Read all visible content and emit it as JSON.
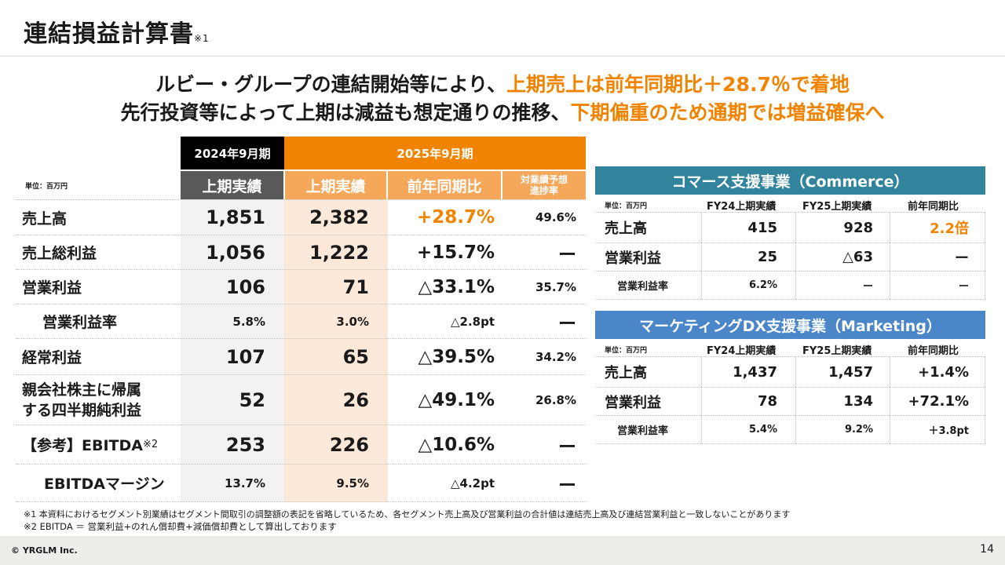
{
  "title": {
    "main": "連結損益計算書",
    "note": "※1"
  },
  "headline": {
    "line1_black": "ルビー・グループの連結開始等により、",
    "line1_orange": "上期売上は前年同期比＋28.7％で着地",
    "line2_black": "先行投資等によって上期は減益も想定通りの推移、",
    "line2_orange": "下期偏重のため通期では増益確保へ"
  },
  "colors": {
    "orange": "#f08300",
    "black": "#000000",
    "gray_header": "#595959",
    "teal": "#31849b",
    "blue": "#4a86c8",
    "orange_col": "#fde9d9",
    "gray_col": "#f2f2f2"
  },
  "main_table": {
    "unit": "単位：百万円",
    "fy2024": "2024年9月期",
    "fy2025": "2025年9月期",
    "columns": [
      "上期実績",
      "上期実績",
      "前年同期比",
      "対業績予想",
      "進捗率"
    ],
    "rows": [
      {
        "label": "売上高",
        "prev": "1,851",
        "curr": "2,382",
        "yoy": "+28.7%",
        "progress": "49.6%"
      },
      {
        "label": "売上総利益",
        "prev": "1,056",
        "curr": "1,222",
        "yoy": "+15.7%",
        "progress": "ー"
      },
      {
        "label": "営業利益",
        "prev": "106",
        "curr": "71",
        "yoy": "△33.1%",
        "progress": "35.7%"
      },
      {
        "label": "営業利益率",
        "prev": "5.8%",
        "curr": "3.0%",
        "yoy": "△2.8pt",
        "progress": "ー"
      },
      {
        "label": "経常利益",
        "prev": "107",
        "curr": "65",
        "yoy": "△39.5%",
        "progress": "34.2%"
      },
      {
        "label": "親会社株主に帰属",
        "label2": "する四半期純利益",
        "prev": "52",
        "curr": "26",
        "yoy": "△49.1%",
        "progress": "26.8%"
      },
      {
        "label": "【参考】EBITDA",
        "label_note": "※2",
        "prev": "253",
        "curr": "226",
        "yoy": "△10.6%",
        "progress": "ー"
      },
      {
        "label": "EBITDAマージン",
        "prev": "13.7%",
        "curr": "9.5%",
        "yoy": "△4.2pt",
        "progress": "ー"
      }
    ]
  },
  "commerce": {
    "title": "コマース支援事業（Commerce）",
    "unit": "単位：百万円",
    "columns": [
      "FY24上期実績",
      "FY25上期実績",
      "前年同期比"
    ],
    "rows": [
      {
        "label": "売上高",
        "fy24": "415",
        "fy25": "928",
        "yoy": "2.2倍"
      },
      {
        "label": "営業利益",
        "fy24": "25",
        "fy25": "△63",
        "yoy": "ー"
      },
      {
        "label": "営業利益率",
        "fy24": "6.2%",
        "fy25": "ー",
        "yoy": "ー"
      }
    ]
  },
  "marketing": {
    "title": "マーケティングDX支援事業（Marketing）",
    "unit": "単位：百万円",
    "columns": [
      "FY24上期実績",
      "FY25上期実績",
      "前年同期比"
    ],
    "rows": [
      {
        "label": "売上高",
        "fy24": "1,437",
        "fy25": "1,457",
        "yoy": "+1.4%"
      },
      {
        "label": "営業利益",
        "fy24": "78",
        "fy25": "134",
        "yoy": "+72.1%"
      },
      {
        "label": "営業利益率",
        "fy24": "5.4%",
        "fy25": "9.2%",
        "yoy": "＋3.8pt"
      }
    ]
  },
  "footnotes": [
    "※1 本資料におけるセグメント別業績はセグメント間取引の調整額の表記を省略しているため、各セグメント売上高及び営業利益の合計値は連結売上高及び連結営業利益と一致しないことがあります",
    "※2 EBITDA ＝ 営業利益+のれん償却費+減価償却費として算出しております"
  ],
  "footer": {
    "copyright": "© YRGLM Inc.",
    "page": "14"
  }
}
